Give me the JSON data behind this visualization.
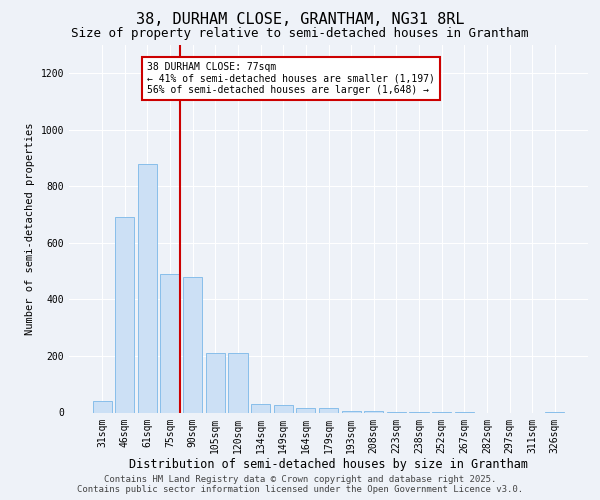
{
  "title1": "38, DURHAM CLOSE, GRANTHAM, NG31 8RL",
  "title2": "Size of property relative to semi-detached houses in Grantham",
  "xlabel": "Distribution of semi-detached houses by size in Grantham",
  "ylabel": "Number of semi-detached properties",
  "categories": [
    "31sqm",
    "46sqm",
    "61sqm",
    "75sqm",
    "90sqm",
    "105sqm",
    "120sqm",
    "134sqm",
    "149sqm",
    "164sqm",
    "179sqm",
    "193sqm",
    "208sqm",
    "223sqm",
    "238sqm",
    "252sqm",
    "267sqm",
    "282sqm",
    "297sqm",
    "311sqm",
    "326sqm"
  ],
  "values": [
    40,
    690,
    880,
    490,
    480,
    210,
    210,
    30,
    28,
    15,
    15,
    5,
    5,
    2,
    2,
    1,
    1,
    0,
    0,
    0,
    3
  ],
  "bar_color": "#cce0f5",
  "bar_edge_color": "#7ab8e8",
  "vline_x_index": 3,
  "vline_color": "#cc0000",
  "annotation_text": "38 DURHAM CLOSE: 77sqm\n← 41% of semi-detached houses are smaller (1,197)\n56% of semi-detached houses are larger (1,648) →",
  "annotation_box_color": "#ffffff",
  "annotation_box_edge_color": "#cc0000",
  "footer1": "Contains HM Land Registry data © Crown copyright and database right 2025.",
  "footer2": "Contains public sector information licensed under the Open Government Licence v3.0.",
  "ylim": [
    0,
    1300
  ],
  "yticks": [
    0,
    200,
    400,
    600,
    800,
    1000,
    1200
  ],
  "background_color": "#eef2f8",
  "grid_color": "#ffffff",
  "title1_fontsize": 11,
  "title2_fontsize": 9,
  "xlabel_fontsize": 8.5,
  "ylabel_fontsize": 7.5,
  "tick_fontsize": 7,
  "annot_fontsize": 7,
  "footer_fontsize": 6.5
}
